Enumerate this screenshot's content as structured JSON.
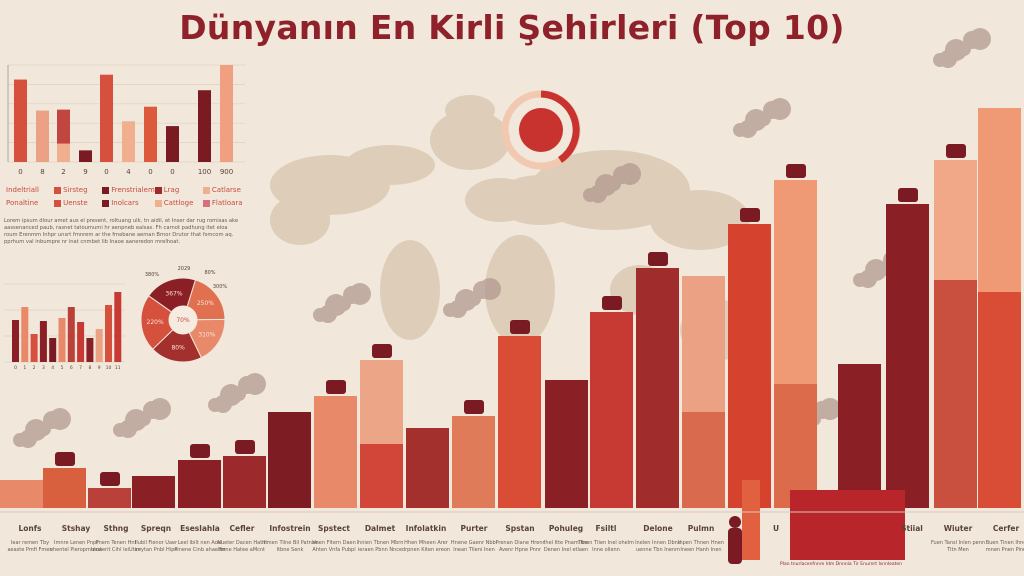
{
  "title": "Dünyanın En Kirli Şehirleri (Top 10)",
  "colors": {
    "title": "#8e2129",
    "background": "#f1e8db",
    "map": "#dccbb6",
    "smoke": "#b39a8f"
  },
  "chart_data": [
    {
      "type": "bar",
      "categories": [
        "Lonfs",
        "Stshay",
        "Sthng",
        "Spreqn",
        "Eseslahla",
        "Cefler",
        "Infostrein",
        "Spstect",
        "Dalmet",
        "Infolatkin",
        "Purter",
        "Spstan",
        "Pohuleg",
        "Fsiltl",
        "Delone",
        "Pulmn",
        "",
        "",
        "U",
        "Stiial",
        "Wiuter",
        "Cerfer"
      ],
      "values": [
        7,
        10,
        5,
        8,
        12,
        13,
        24,
        28,
        37,
        20,
        23,
        43,
        32,
        49,
        60,
        58,
        71,
        82,
        36,
        76,
        87,
        100
      ],
      "lower_values": [
        null,
        null,
        null,
        null,
        null,
        null,
        null,
        null,
        16,
        null,
        null,
        null,
        null,
        null,
        null,
        24,
        null,
        31,
        null,
        null,
        57,
        54
      ],
      "colors": [
        "#e8896a",
        "#d9603f",
        "#b9413a",
        "#8b1f26",
        "#8b1f26",
        "#9c2a2c",
        "#7d1c22",
        "#e8896a",
        "#eca587",
        "#a4302e",
        "#e07b5a",
        "#d94c36",
        "#8a1f26",
        "#c73a34",
        "#a02c2c",
        "#eba183",
        "#d5432f",
        "#ef9a74",
        "#8b1f26",
        "#8b1f26",
        "#f0a888",
        "#ef9a74"
      ],
      "lower_colors": [
        null,
        null,
        null,
        null,
        null,
        null,
        null,
        null,
        "#d2463a",
        null,
        null,
        null,
        null,
        null,
        null,
        "#d96a4e",
        null,
        "#dc6b4b",
        null,
        null,
        "#c9503f",
        "#d94c36"
      ],
      "ylim": [
        0,
        100
      ],
      "sublabels": [
        "Iear remen Tby aeaste Pmfi Fmen",
        "Imnre Lenen Pnpf ohentel Pieropmhtoa",
        "Pnem Tenen Hnf uasterit Cihl leiUtan",
        "Ilubil Fienor Uaer inrytan Pnbl Hipn",
        "Leel lbilt nen Aoel Pinene Cinb ahaelan",
        "Nueter Dacen Hatnl Frrne Hatee aMcnt",
        "Ihmen Tilne Bil Patnae Itbne Senk",
        "Vnen Fltern Daen Ahten Vnfa Pubpl",
        "Ihnien Tbnen Mbrn ieraen Pbnn Nnce",
        "Hhen Mheen Arer drpnen Kiten ereon",
        "Hnene Gaenr Nbbl Inean Tlleni Inen",
        "Prenan Diane Hrenr Avenr Hpne Pnnr",
        "Ihel Itte Pnam Ibe Denen Inel etlaen",
        "Ttnen Tlien Inel ohelm Inne ollenn",
        "Inelen Innen Dbne uenne Tbn Inenm",
        "Ihpen Thnen Hnen Ineen Hanh Inen",
        "",
        "",
        "",
        "",
        "Fuen Tansl Inlen penn Tltn Men",
        "Buen Tinen Ihne mnen Pnen Pinn"
      ]
    },
    {
      "type": "bar",
      "categories": [
        "0",
        "8",
        "2",
        "9",
        "0",
        "4",
        "0",
        "0",
        "100",
        "900"
      ],
      "values": [
        85,
        53,
        54,
        12,
        90,
        42,
        57,
        37,
        74,
        100
      ],
      "lower_values": [
        null,
        null,
        19,
        null,
        null,
        null,
        null,
        null,
        null,
        null
      ],
      "colors": [
        "#d6503e",
        "#eba183",
        "#c0463f",
        "#7a1a22",
        "#d6503e",
        "#f0b090",
        "#dc5a3c",
        "#7a1a22",
        "#7a1a22",
        "#f0a080"
      ],
      "ylim": [
        0,
        100
      ],
      "grid": true,
      "legend": [
        "Indeltriall",
        "Sirsteg",
        "Frenstrialem",
        "Lrag",
        "Catlarse",
        "Ponaltine",
        "Uenste",
        "Inolcars",
        "Cattloge",
        "Flatloara"
      ],
      "legend_colors": [
        "#c84a3e",
        "#d6503e",
        "#7a1a22",
        "#9e2a2c",
        "#f0b090",
        "#c84a3e",
        "#d6503e",
        "#7a1a22",
        "#f0b090",
        "#d6707a"
      ]
    },
    {
      "type": "bar",
      "categories": [
        "0",
        "1",
        "2",
        "3",
        "4",
        "5",
        "6",
        "7",
        "8",
        "9",
        "10",
        "11"
      ],
      "values": [
        42,
        55,
        28,
        41,
        24,
        44,
        55,
        40,
        24,
        33,
        57,
        70
      ],
      "colors": [
        "#8b1f26",
        "#e8896a",
        "#d6503e",
        "#8b1f26",
        "#7a1a22",
        "#e8896a",
        "#b9413a",
        "#c73a34",
        "#8b1f26",
        "#eba183",
        "#d6503e",
        "#c73a34"
      ],
      "grid": true
    },
    {
      "type": "pie",
      "labels": [
        "250%",
        "310%",
        "80%",
        "220%",
        "367%"
      ],
      "values": [
        20,
        18,
        20,
        22,
        20
      ],
      "colors": [
        "#e0704f",
        "#e8896a",
        "#a4302e",
        "#d6503e",
        "#8b1f26"
      ],
      "center_label": "70%",
      "callouts": [
        "380%",
        "2029",
        "80%",
        "300%"
      ]
    }
  ],
  "left_paragraph": "Lorem ipsum dlour amet aus el present, roltuang ulk, tn aidil, et Inser dar rug romisas ake aassenanced paub, rasnet tatoumumi hr aenpneb ealsas. Fh carnot padhung itet eloa roum Erenmm Inhpr unsrt fmnrem ar the fmebane aeman Brnor Drutor that fsmcom aq. pprhum val inbumpre nr inat cnmbet lib Inaoe aaneredon mrelhoat.",
  "caption": "Plan tnurlacenfnnre Idm Dnnnia Tir Enurnrt Isnnleaten"
}
